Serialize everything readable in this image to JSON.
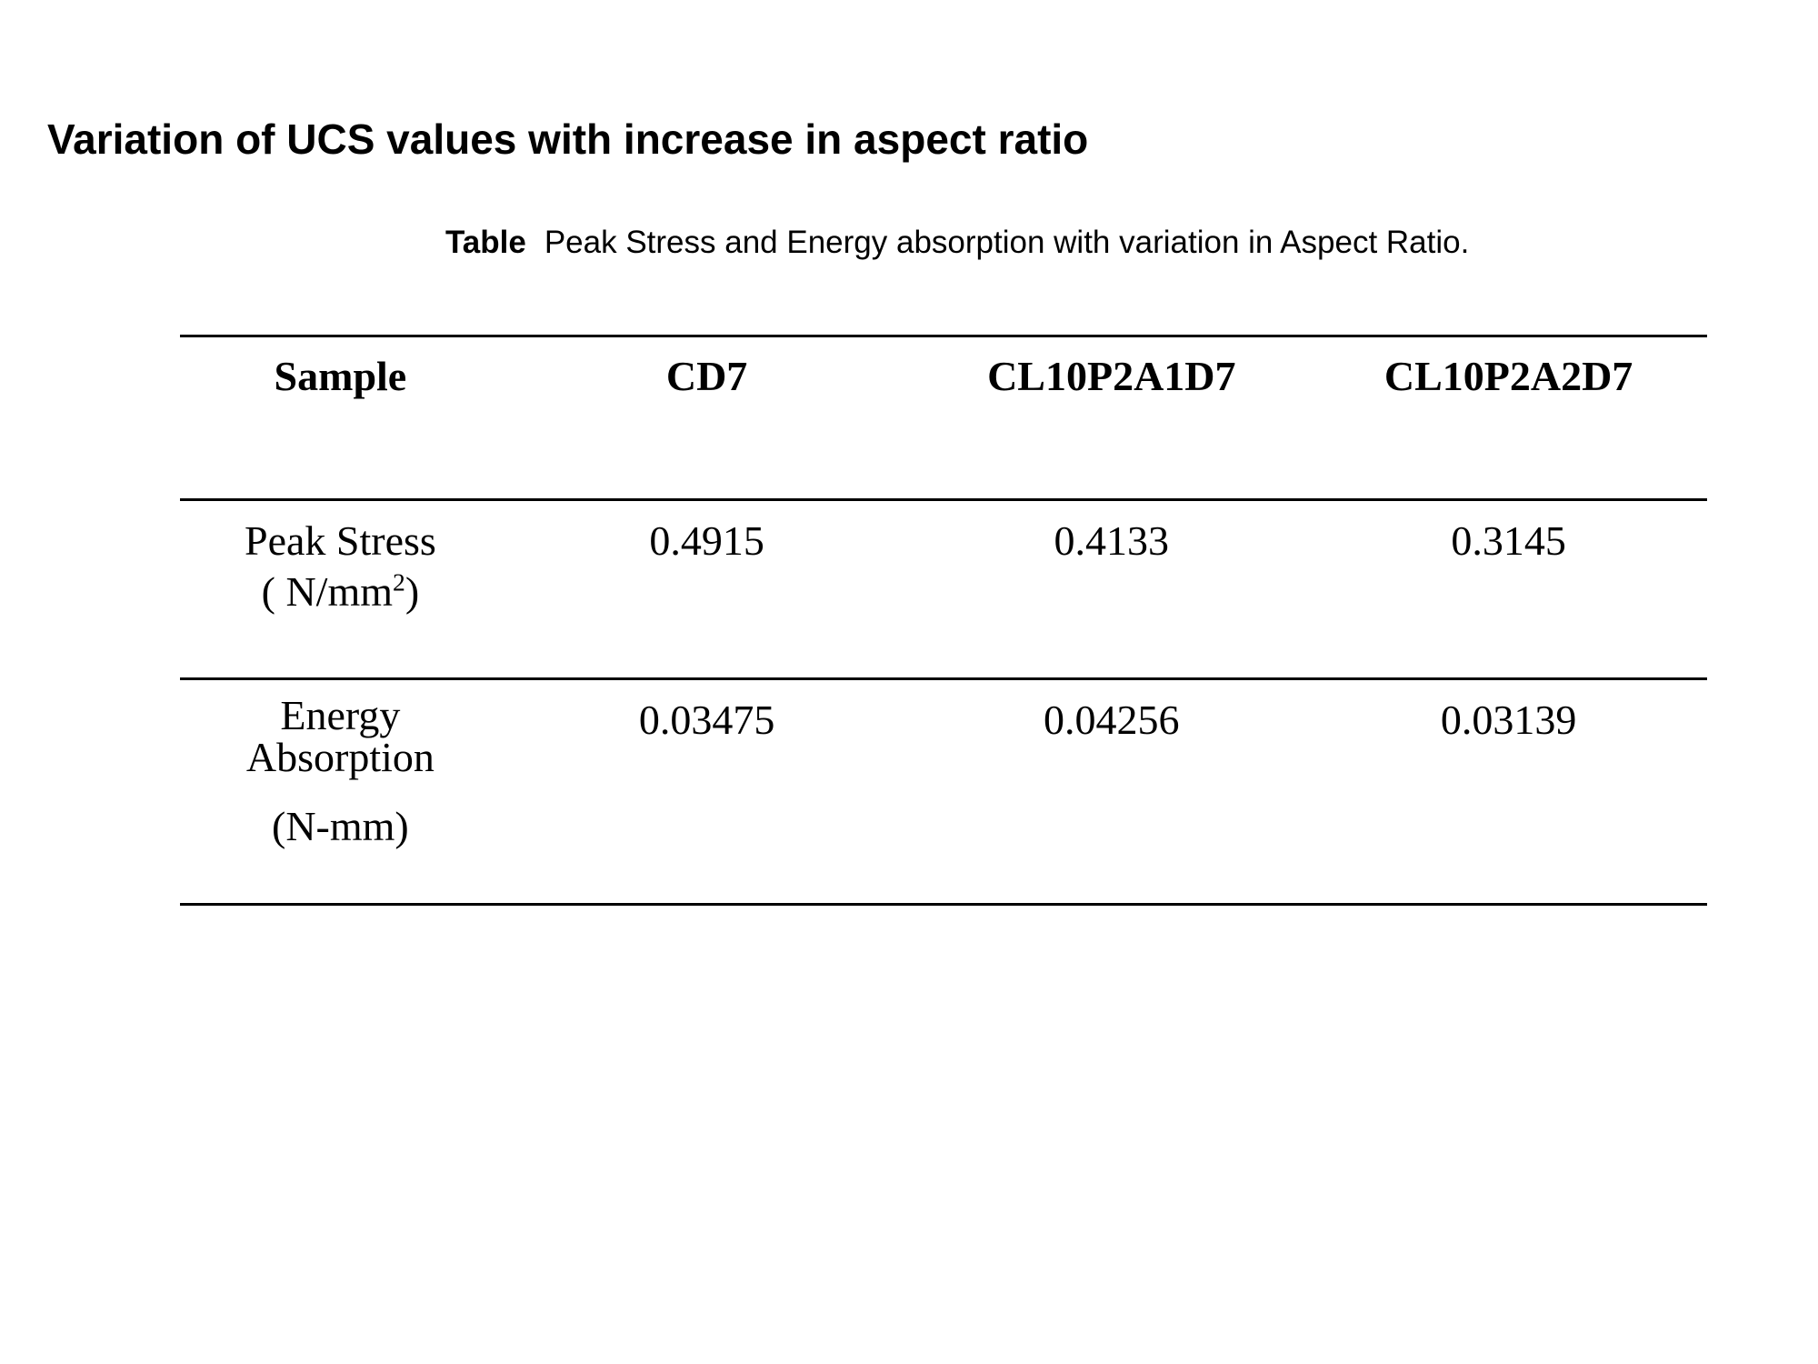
{
  "slide": {
    "title": "Variation of UCS values with increase in aspect ratio"
  },
  "caption": {
    "label": "Table",
    "text": "Peak Stress and Energy absorption with variation in Aspect Ratio."
  },
  "table": {
    "headers": [
      "Sample",
      "CD7",
      "CL10P2A1D7",
      "CL10P2A2D7"
    ],
    "rows": [
      {
        "label_line1": "Peak Stress",
        "label_unit_prefix": "( N/mm",
        "label_unit_sup": "2",
        "label_unit_suffix": ")",
        "values": [
          "0.4915",
          "0.4133",
          "0.3145"
        ]
      },
      {
        "label_line1": "Energy",
        "label_line2": "Absorption",
        "label_unit": "(N-mm)",
        "values": [
          "0.03475",
          "0.04256",
          "0.03139"
        ]
      }
    ]
  }
}
